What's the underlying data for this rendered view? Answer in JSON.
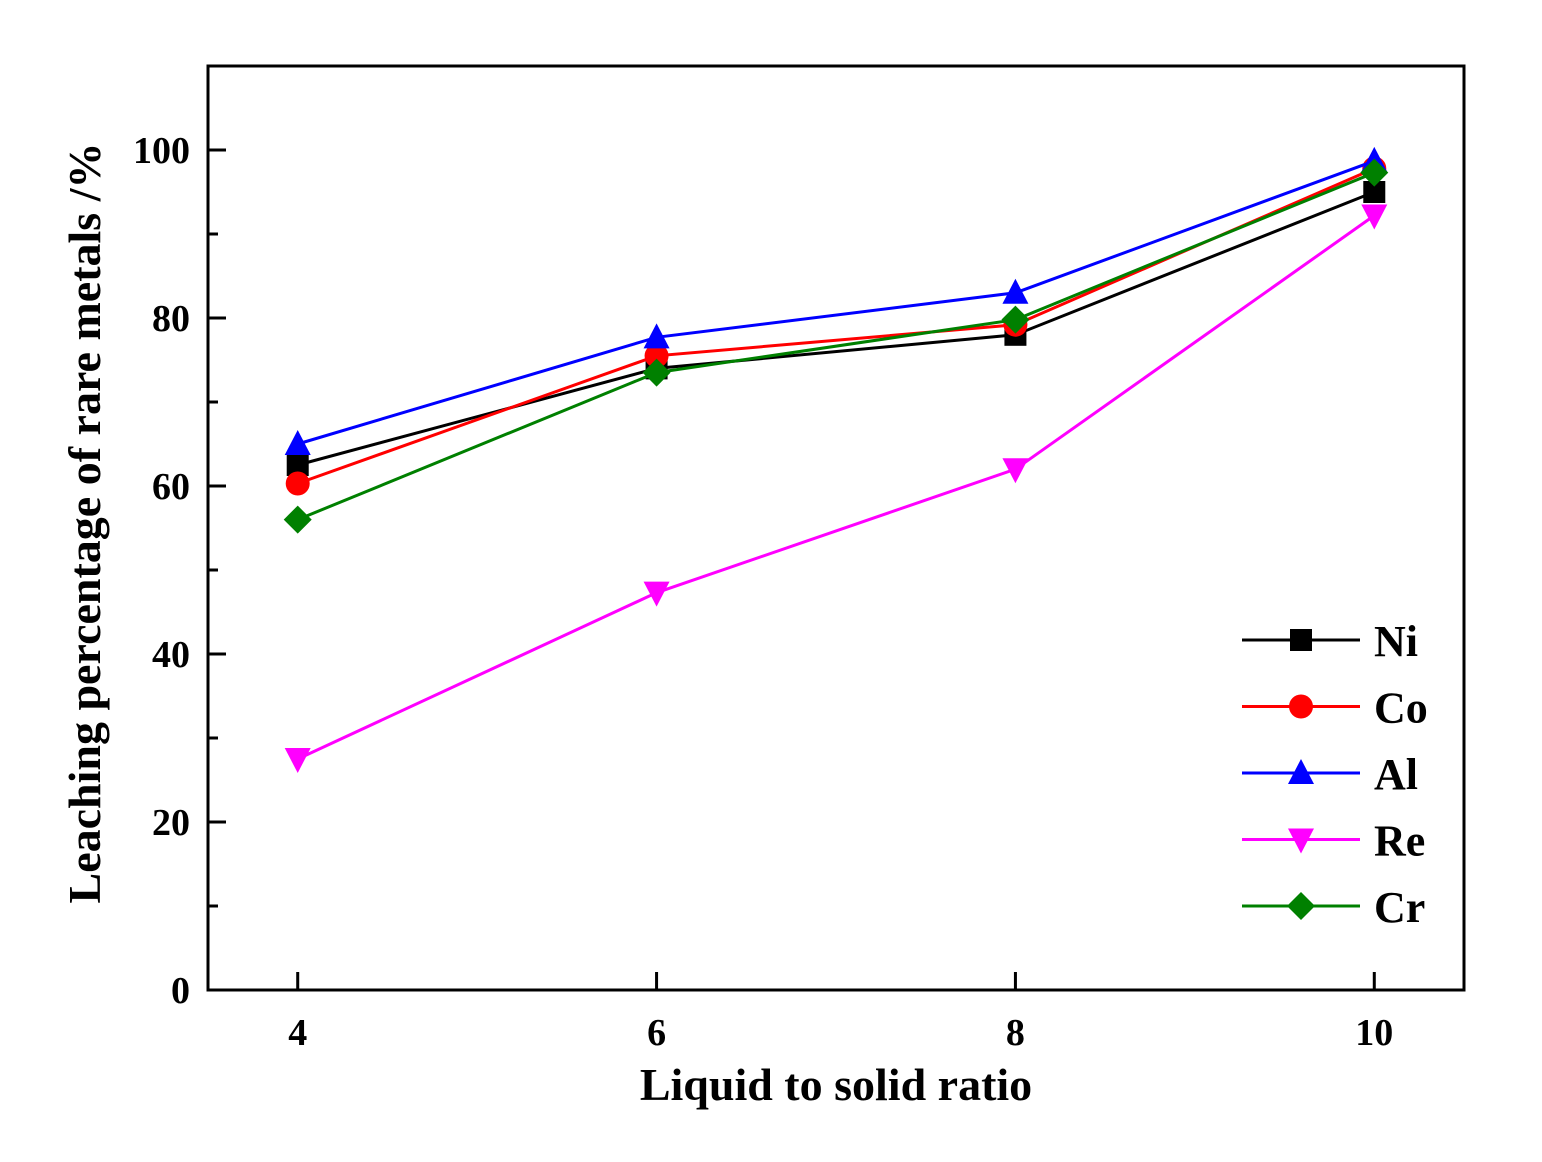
{
  "chart_data": {
    "type": "line",
    "title": "",
    "xlabel": "Liquid to solid ratio",
    "ylabel": "Leaching percentage of rare metals /%",
    "xlim": [
      3.5,
      10.5
    ],
    "ylim": [
      0,
      110
    ],
    "x": [
      4,
      6,
      8,
      10
    ],
    "xticks": [
      4,
      6,
      8,
      10
    ],
    "yticks": [
      0,
      20,
      40,
      60,
      80,
      100
    ],
    "yminor": [
      10,
      30,
      50,
      70,
      90
    ],
    "grid": false,
    "legend_position": "bottom-right",
    "series": [
      {
        "name": "Ni",
        "color": "#000000",
        "marker": "square",
        "values": [
          62.5,
          74.0,
          78.0,
          95.0
        ]
      },
      {
        "name": "Co",
        "color": "#ff0000",
        "marker": "circle",
        "values": [
          60.3,
          75.5,
          79.2,
          97.8
        ]
      },
      {
        "name": "Al",
        "color": "#0000ff",
        "marker": "triangle-up",
        "values": [
          65.0,
          77.7,
          83.0,
          98.7
        ]
      },
      {
        "name": "Re",
        "color": "#ff00ff",
        "marker": "triangle-down",
        "values": [
          27.5,
          47.3,
          62.0,
          92.2
        ]
      },
      {
        "name": "Cr",
        "color": "#008000",
        "marker": "diamond",
        "values": [
          56.0,
          73.5,
          79.8,
          97.3
        ]
      }
    ]
  }
}
